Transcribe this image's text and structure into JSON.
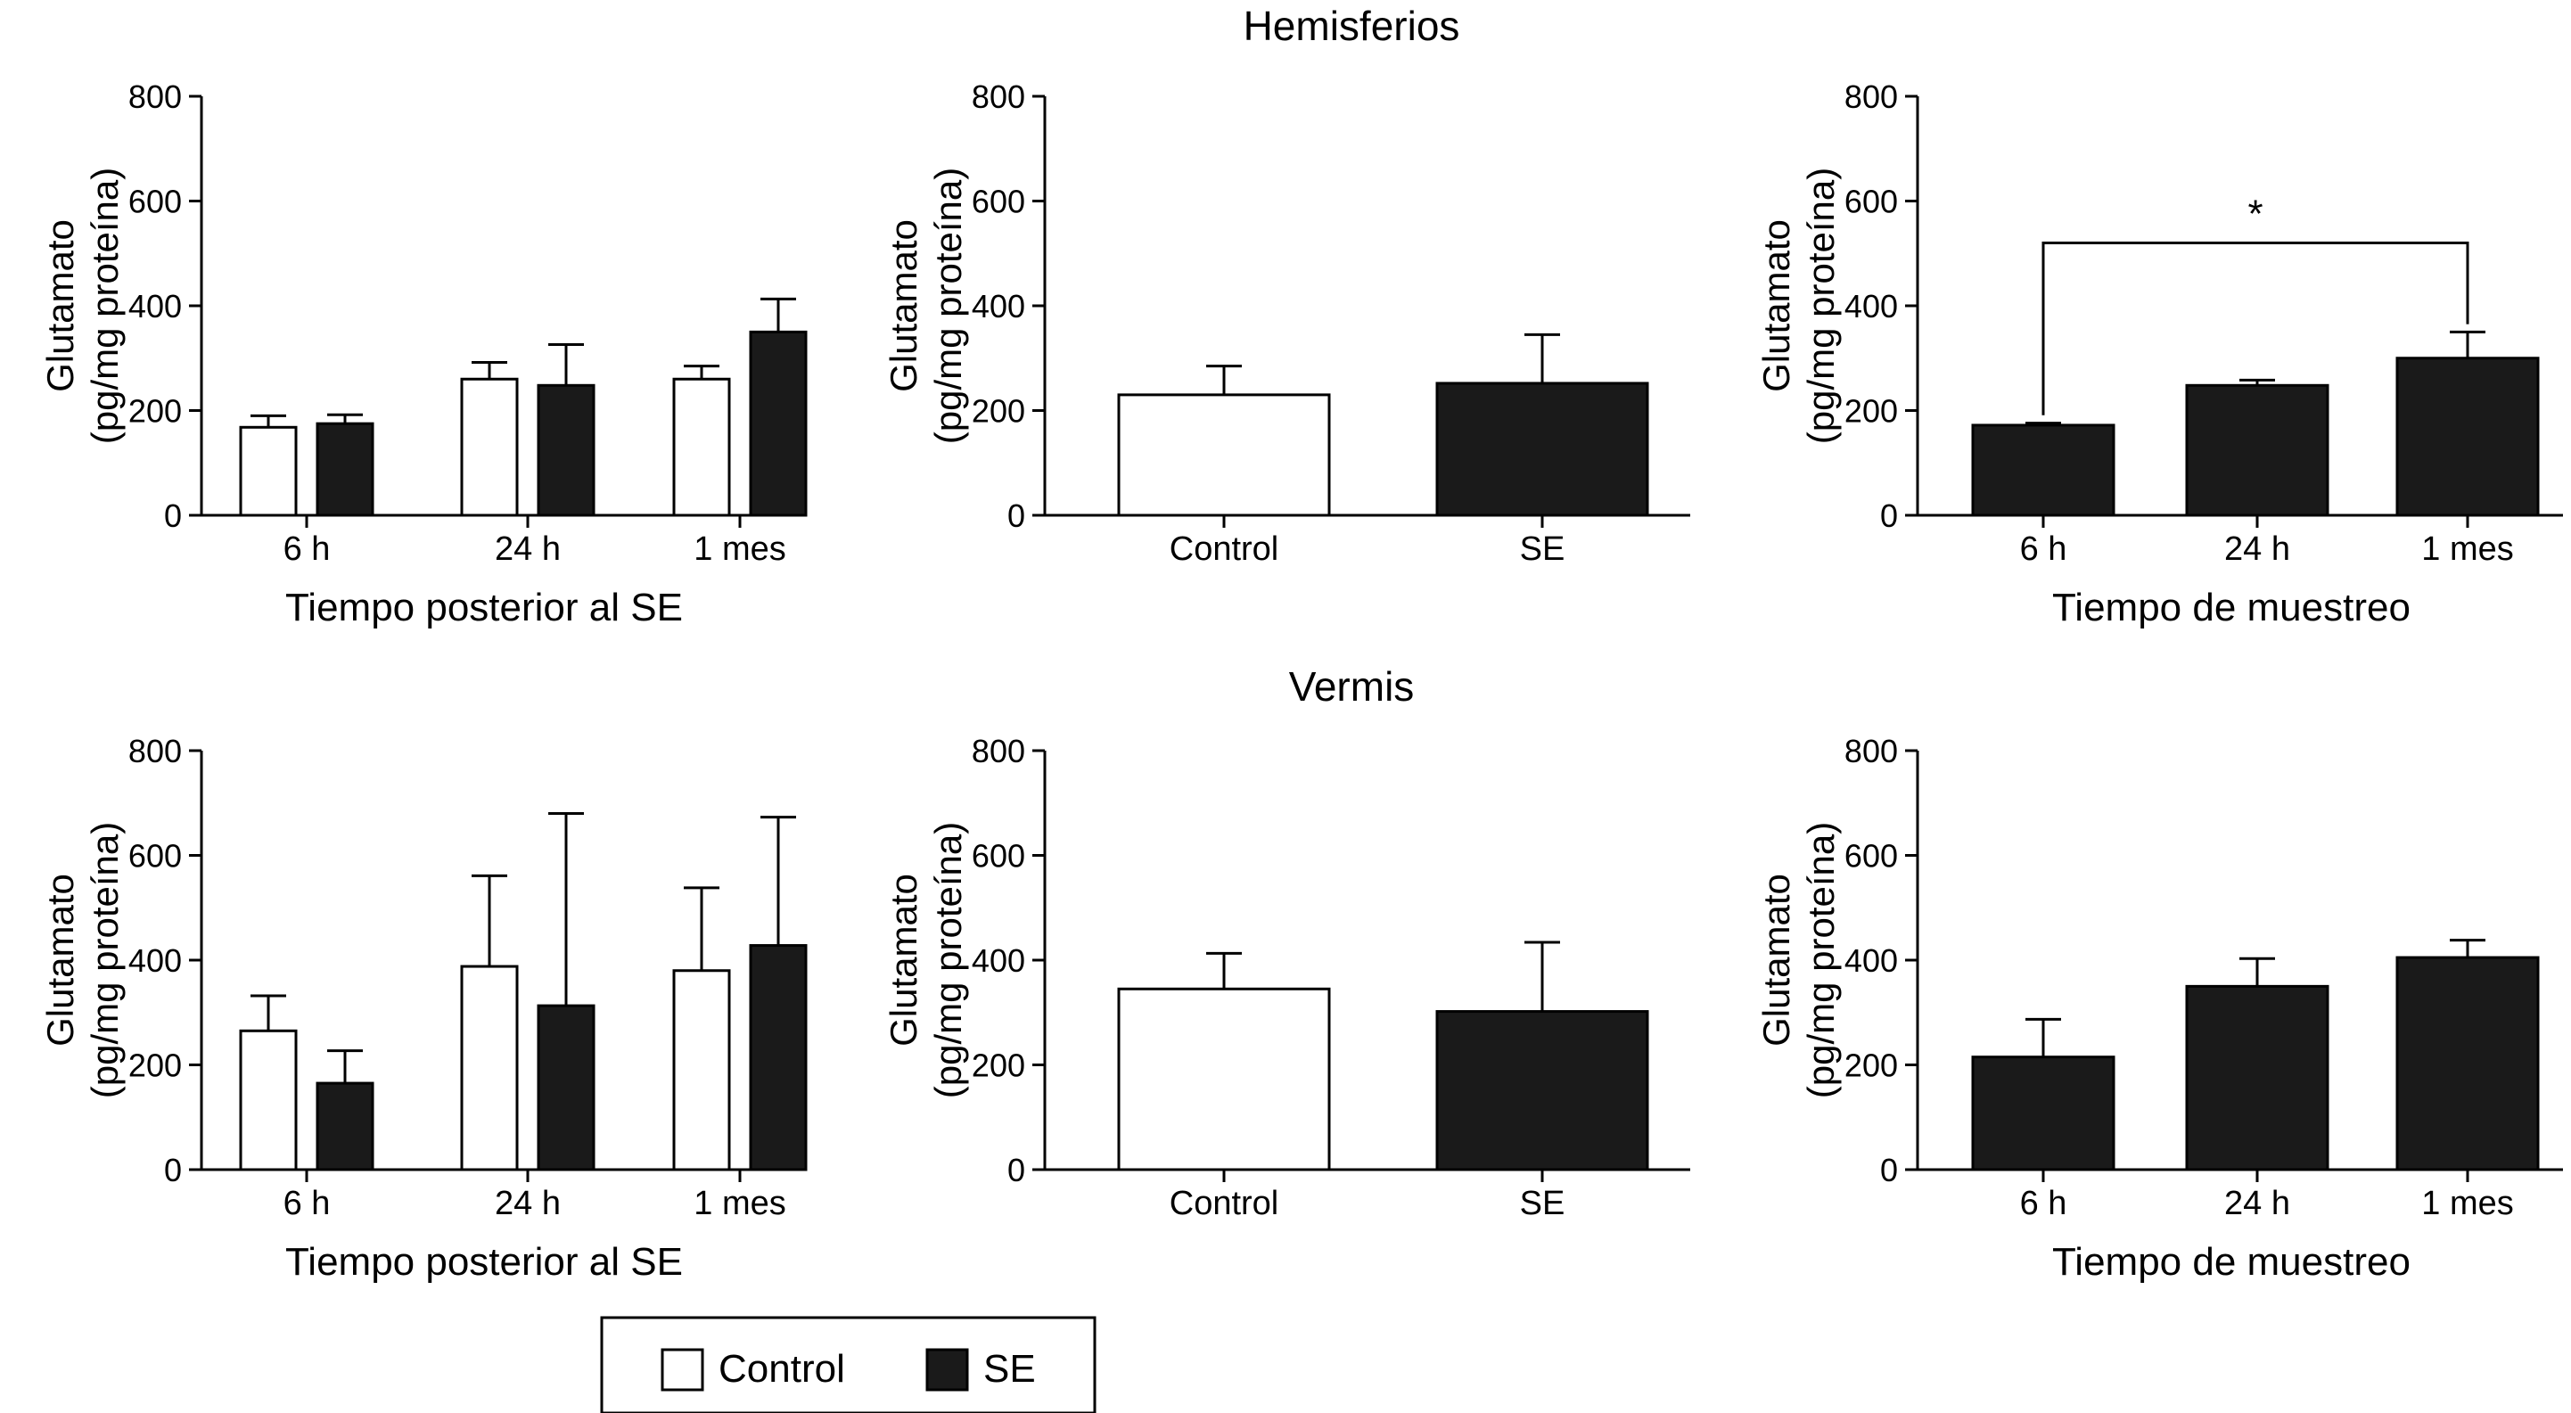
{
  "sections": {
    "top": "Hemisferios",
    "bottom": "Vermis"
  },
  "legend": {
    "control": "Control",
    "se": "SE"
  },
  "colors": {
    "control_fill": "#ffffff",
    "se_fill": "#1a1a1a",
    "axis": "#000000"
  },
  "chart_data": [
    {
      "id": "hemisferios-tiempo-posterior",
      "type": "bar",
      "ylabel": [
        "Glutamato",
        "(pg/mg proteína)"
      ],
      "xlabel": "Tiempo posterior al SE",
      "ylim": [
        0,
        800
      ],
      "yticks": [
        0,
        200,
        400,
        600,
        800
      ],
      "categories": [
        "6 h",
        "24 h",
        "1 mes"
      ],
      "series": [
        {
          "name": "Control",
          "fill": "control",
          "values": [
            168,
            260,
            260
          ],
          "errors": [
            22,
            32,
            25
          ]
        },
        {
          "name": "SE",
          "fill": "se",
          "values": [
            175,
            248,
            350
          ],
          "errors": [
            17,
            78,
            63
          ]
        }
      ]
    },
    {
      "id": "hemisferios-control-se",
      "type": "bar",
      "ylabel": [
        "Glutamato",
        "(pg/mg proteína)"
      ],
      "xlabel": "",
      "ylim": [
        0,
        800
      ],
      "yticks": [
        0,
        200,
        400,
        600,
        800
      ],
      "categories": [
        "Control",
        "SE"
      ],
      "series": [
        {
          "name": "Glutamato",
          "values": [
            230,
            252
          ],
          "errors": [
            55,
            93
          ],
          "fills": [
            "control",
            "se"
          ]
        }
      ]
    },
    {
      "id": "hemisferios-muestreo",
      "type": "bar",
      "ylabel": [
        "Glutamato",
        "(pg/mg proteína)"
      ],
      "xlabel": "Tiempo de muestreo",
      "ylim": [
        0,
        800
      ],
      "yticks": [
        0,
        200,
        400,
        600,
        800
      ],
      "categories": [
        "6 h",
        "24 h",
        "1 mes"
      ],
      "series": [
        {
          "name": "SE",
          "fill": "se",
          "values": [
            172,
            248,
            300
          ],
          "errors": [
            4,
            10,
            50
          ]
        }
      ],
      "annotation": {
        "text": "*",
        "from": 0,
        "to": 2,
        "level": 520
      }
    },
    {
      "id": "vermis-tiempo-posterior",
      "type": "bar",
      "ylabel": [
        "Glutamato",
        "(pg/mg proteína)"
      ],
      "xlabel": "Tiempo posterior al SE",
      "ylim": [
        0,
        800
      ],
      "yticks": [
        0,
        200,
        400,
        600,
        800
      ],
      "categories": [
        "6 h",
        "24 h",
        "1 mes"
      ],
      "series": [
        {
          "name": "Control",
          "fill": "control",
          "values": [
            265,
            388,
            380
          ],
          "errors": [
            67,
            173,
            158
          ]
        },
        {
          "name": "SE",
          "fill": "se",
          "values": [
            165,
            313,
            428
          ],
          "errors": [
            62,
            367,
            245
          ]
        }
      ]
    },
    {
      "id": "vermis-control-se",
      "type": "bar",
      "ylabel": [
        "Glutamato",
        "(pg/mg proteína)"
      ],
      "xlabel": "",
      "ylim": [
        0,
        800
      ],
      "yticks": [
        0,
        200,
        400,
        600,
        800
      ],
      "categories": [
        "Control",
        "SE"
      ],
      "series": [
        {
          "name": "Glutamato",
          "values": [
            345,
            302
          ],
          "errors": [
            68,
            132
          ],
          "fills": [
            "control",
            "se"
          ]
        }
      ]
    },
    {
      "id": "vermis-muestreo",
      "type": "bar",
      "ylabel": [
        "Glutamato",
        "(pg/mg proteína)"
      ],
      "xlabel": "Tiempo de muestreo",
      "ylim": [
        0,
        800
      ],
      "yticks": [
        0,
        200,
        400,
        600,
        800
      ],
      "categories": [
        "6 h",
        "24 h",
        "1 mes"
      ],
      "series": [
        {
          "name": "SE",
          "fill": "se",
          "values": [
            215,
            350,
            405
          ],
          "errors": [
            72,
            53,
            33
          ]
        }
      ]
    }
  ]
}
